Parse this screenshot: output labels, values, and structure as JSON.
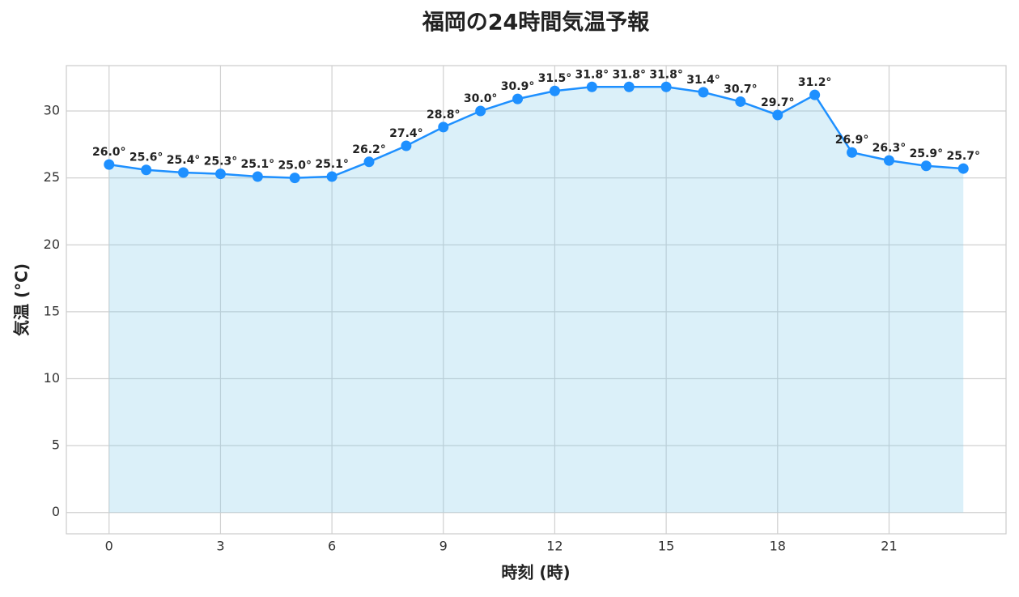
{
  "chart_data": {
    "type": "line",
    "title": "福岡の24時間気温予報",
    "x_label": "時刻 (時)",
    "y_label": "気温 (°C)",
    "x": [
      0,
      1,
      2,
      3,
      4,
      5,
      6,
      7,
      8,
      9,
      10,
      11,
      12,
      13,
      14,
      15,
      16,
      17,
      18,
      19,
      20,
      21,
      22,
      23
    ],
    "series": [
      {
        "name": "気温",
        "color": "#1e90ff",
        "values": [
          26.0,
          25.6,
          25.4,
          25.3,
          25.1,
          25.0,
          25.1,
          26.2,
          27.4,
          28.8,
          30.0,
          30.9,
          31.5,
          31.8,
          31.8,
          31.8,
          31.4,
          30.7,
          29.7,
          31.2,
          26.9,
          26.3,
          25.9,
          25.7
        ],
        "value_labels": [
          "26.0°",
          "25.6°",
          "25.4°",
          "25.3°",
          "25.1°",
          "25.0°",
          "25.1°",
          "26.2°",
          "27.4°",
          "28.8°",
          "30.0°",
          "30.9°",
          "31.5°",
          "31.8°",
          "31.8°",
          "31.8°",
          "31.4°",
          "30.7°",
          "29.7°",
          "31.2°",
          "26.9°",
          "26.3°",
          "25.9°",
          "25.7°"
        ]
      }
    ],
    "fill_color": "#87ceeb",
    "xlim": [
      -1.15,
      24.15
    ],
    "xticks": [
      0,
      3,
      6,
      9,
      12,
      15,
      18,
      21
    ],
    "ylim": [
      -1.59,
      33.39
    ],
    "yticks": [
      0,
      5,
      10,
      15,
      20,
      25,
      30
    ],
    "grid": true
  }
}
